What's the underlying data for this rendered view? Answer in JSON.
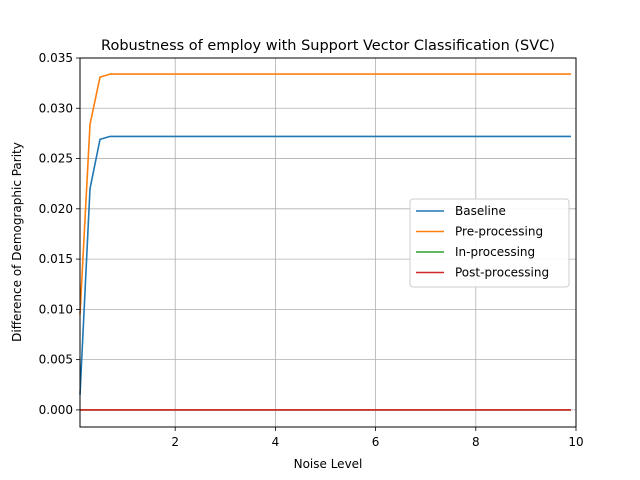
{
  "chart_data": {
    "type": "line",
    "title": "Robustness of employ with Support Vector Classification (SVC)",
    "xlabel": "Noise Level",
    "ylabel": "Difference of Demographic Parity",
    "xlim": [
      0.1,
      10
    ],
    "ylim": [
      -0.0017,
      0.035
    ],
    "x_ticks": [
      2,
      4,
      6,
      8,
      10
    ],
    "y_ticks": [
      0.0,
      0.005,
      0.01,
      0.015,
      0.02,
      0.025,
      0.03,
      0.035
    ],
    "x_tick_labels": [
      "2",
      "4",
      "6",
      "8",
      "10"
    ],
    "y_tick_labels": [
      "0.000",
      "0.005",
      "0.010",
      "0.015",
      "0.020",
      "0.025",
      "0.030",
      "0.035"
    ],
    "grid": true,
    "legend_position": "center-right",
    "x": [
      0.1,
      0.3,
      0.5,
      0.7,
      0.9,
      1.1,
      1.3,
      1.5,
      2.0,
      3.0,
      4.0,
      5.0,
      6.0,
      7.0,
      8.0,
      9.0,
      9.9
    ],
    "series": [
      {
        "name": "Baseline",
        "color": "#1f77b4",
        "values": [
          0.0015,
          0.022,
          0.0269,
          0.0272,
          0.0272,
          0.0272,
          0.0272,
          0.0272,
          0.0272,
          0.0272,
          0.0272,
          0.0272,
          0.0272,
          0.0272,
          0.0272,
          0.0272,
          0.0272
        ]
      },
      {
        "name": "Pre-processing",
        "color": "#ff7f0e",
        "values": [
          0.0095,
          0.0284,
          0.0331,
          0.0334,
          0.0334,
          0.0334,
          0.0334,
          0.0334,
          0.0334,
          0.0334,
          0.0334,
          0.0334,
          0.0334,
          0.0334,
          0.0334,
          0.0334,
          0.0334
        ]
      },
      {
        "name": "In-processing",
        "color": "#2ca02c",
        "values": [
          0,
          0,
          0,
          0,
          0,
          0,
          0,
          0,
          0,
          0,
          0,
          0,
          0,
          0,
          0,
          0,
          0
        ]
      },
      {
        "name": "Post-processing",
        "color": "#d62728",
        "values": [
          0,
          0,
          0,
          0,
          0,
          0,
          0,
          0,
          0,
          0,
          0,
          0,
          0,
          0,
          0,
          0,
          0
        ]
      }
    ]
  }
}
